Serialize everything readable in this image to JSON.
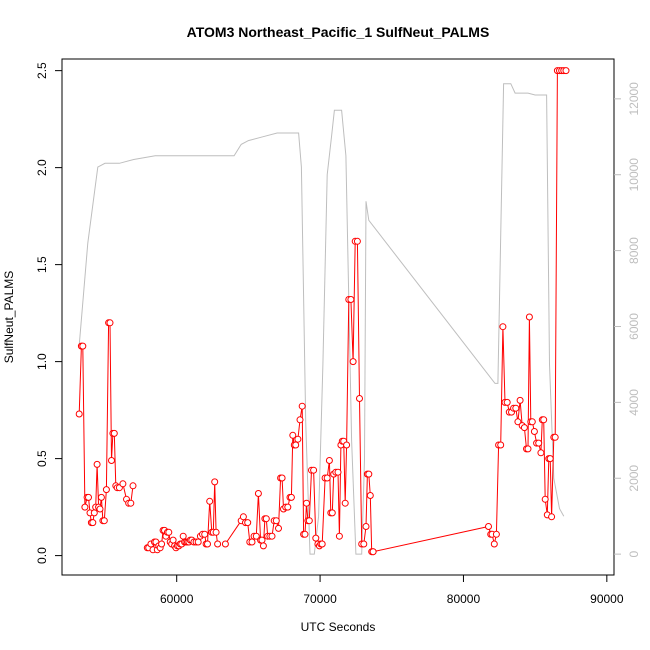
{
  "chart_data": {
    "type": "line",
    "title": "ATOM3 Northeast_Pacific_1 SulfNeut_PALMS",
    "xlabel": "UTC Seconds",
    "ylabel": "SulfNeut_PALMS",
    "xlim": [
      52000,
      90500
    ],
    "ylim": [
      -0.1,
      2.56
    ],
    "y2lim": [
      -550,
      13050
    ],
    "xticks": [
      60000,
      70000,
      80000,
      90000
    ],
    "xtick_labels": [
      "60000",
      "70000",
      "80000",
      "90000"
    ],
    "yticks": [
      0.0,
      0.5,
      1.0,
      1.5,
      2.0,
      2.5
    ],
    "ytick_labels": [
      "0.0",
      "0.5",
      "1.0",
      "1.5",
      "2.0",
      "2.5"
    ],
    "y2ticks": [
      0,
      2000,
      4000,
      6000,
      8000,
      10000,
      12000
    ],
    "y2tick_labels": [
      "0",
      "2000",
      "4000",
      "6000",
      "8000",
      "10000",
      "12000"
    ],
    "colors": {
      "sulfneut": "#ff0000",
      "altitude": "#bebebe",
      "frame": "#000000"
    },
    "grid": false,
    "legend": "none",
    "series": [
      {
        "axis": "left",
        "style": "line+circles",
        "color": "#ff0000",
        "segments": [
          [
            [
              53200,
              0.73
            ],
            [
              53350,
              1.08
            ],
            [
              53450,
              1.08
            ],
            [
              53600,
              0.25
            ],
            [
              53750,
              0.3
            ],
            [
              53850,
              0.3
            ],
            [
              53950,
              0.22
            ],
            [
              54050,
              0.17
            ],
            [
              54150,
              0.17
            ],
            [
              54250,
              0.22
            ],
            [
              54350,
              0.25
            ],
            [
              54450,
              0.47
            ],
            [
              54550,
              0.25
            ],
            [
              54650,
              0.24
            ],
            [
              54750,
              0.3
            ],
            [
              54850,
              0.18
            ],
            [
              54950,
              0.18
            ],
            [
              55100,
              0.34
            ],
            [
              55250,
              1.2
            ],
            [
              55350,
              1.2
            ],
            [
              55450,
              0.49
            ],
            [
              55550,
              0.63
            ],
            [
              55650,
              0.63
            ],
            [
              55750,
              0.36
            ],
            [
              55850,
              0.35
            ],
            [
              56000,
              0.35
            ],
            [
              56250,
              0.37
            ],
            [
              56500,
              0.29
            ],
            [
              56650,
              0.27
            ],
            [
              56800,
              0.27
            ],
            [
              56950,
              0.36
            ]
          ],
          [
            [
              57950,
              0.04
            ],
            [
              58050,
              0.04
            ],
            [
              58200,
              0.06
            ],
            [
              58350,
              0.03
            ],
            [
              58450,
              0.07
            ],
            [
              58550,
              0.07
            ],
            [
              58650,
              0.03
            ],
            [
              58750,
              0.05
            ],
            [
              58850,
              0.04
            ],
            [
              58950,
              0.06
            ],
            [
              59050,
              0.13
            ],
            [
              59150,
              0.13
            ],
            [
              59250,
              0.1
            ],
            [
              59350,
              0.12
            ],
            [
              59450,
              0.12
            ],
            [
              59550,
              0.07
            ],
            [
              59650,
              0.06
            ],
            [
              59750,
              0.08
            ],
            [
              59850,
              0.05
            ],
            [
              59950,
              0.04
            ],
            [
              60050,
              0.05
            ],
            [
              60150,
              0.05
            ],
            [
              60250,
              0.06
            ],
            [
              60350,
              0.06
            ],
            [
              60450,
              0.1
            ],
            [
              60550,
              0.07
            ],
            [
              60650,
              0.07
            ],
            [
              60750,
              0.07
            ],
            [
              60850,
              0.07
            ],
            [
              60950,
              0.08
            ],
            [
              61050,
              0.08
            ],
            [
              61200,
              0.07
            ],
            [
              61350,
              0.07
            ],
            [
              61500,
              0.07
            ],
            [
              61650,
              0.1
            ],
            [
              61800,
              0.11
            ],
            [
              61950,
              0.11
            ],
            [
              62050,
              0.06
            ],
            [
              62150,
              0.06
            ],
            [
              62300,
              0.28
            ],
            [
              62450,
              0.12
            ],
            [
              62550,
              0.12
            ],
            [
              62650,
              0.38
            ],
            [
              62750,
              0.12
            ],
            [
              62850,
              0.06
            ]
          ],
          [
            [
              63400,
              0.06
            ],
            [
              64500,
              0.18
            ],
            [
              64650,
              0.2
            ],
            [
              64800,
              0.17
            ],
            [
              64950,
              0.17
            ],
            [
              65100,
              0.07
            ],
            [
              65250,
              0.07
            ],
            [
              65400,
              0.1
            ],
            [
              65550,
              0.1
            ],
            [
              65700,
              0.32
            ],
            [
              65850,
              0.08
            ],
            [
              65950,
              0.08
            ],
            [
              66050,
              0.05
            ],
            [
              66150,
              0.19
            ],
            [
              66250,
              0.19
            ],
            [
              66350,
              0.1
            ],
            [
              66500,
              0.1
            ],
            [
              66650,
              0.1
            ],
            [
              66800,
              0.18
            ],
            [
              66950,
              0.18
            ],
            [
              67100,
              0.14
            ],
            [
              67250,
              0.4
            ],
            [
              67350,
              0.4
            ],
            [
              67450,
              0.24
            ],
            [
              67600,
              0.25
            ],
            [
              67750,
              0.25
            ],
            [
              67900,
              0.3
            ],
            [
              68000,
              0.3
            ],
            [
              68100,
              0.62
            ],
            [
              68200,
              0.57
            ],
            [
              68300,
              0.57
            ],
            [
              68450,
              0.6
            ],
            [
              68600,
              0.7
            ],
            [
              68750,
              0.77
            ],
            [
              68850,
              0.11
            ],
            [
              68950,
              0.11
            ],
            [
              69050,
              0.27
            ],
            [
              69150,
              0.18
            ],
            [
              69250,
              0.18
            ],
            [
              69400,
              0.44
            ],
            [
              69550,
              0.44
            ],
            [
              69700,
              0.09
            ],
            [
              69850,
              0.06
            ],
            [
              69950,
              0.05
            ],
            [
              70050,
              0.06
            ],
            [
              70150,
              0.06
            ],
            [
              70350,
              0.4
            ],
            [
              70500,
              0.4
            ],
            [
              70650,
              0.49
            ],
            [
              70750,
              0.22
            ],
            [
              70850,
              0.22
            ],
            [
              70950,
              0.42
            ],
            [
              71100,
              0.43
            ],
            [
              71250,
              0.43
            ],
            [
              71350,
              0.1
            ],
            [
              71450,
              0.57
            ],
            [
              71550,
              0.59
            ],
            [
              71650,
              0.59
            ],
            [
              71750,
              0.27
            ],
            [
              71850,
              0.57
            ],
            [
              72000,
              1.32
            ],
            [
              72150,
              1.32
            ],
            [
              72300,
              1.0
            ],
            [
              72450,
              1.62
            ],
            [
              72600,
              1.62
            ],
            [
              72750,
              0.81
            ],
            [
              72900,
              0.06
            ],
            [
              73050,
              0.06
            ],
            [
              73200,
              0.15
            ],
            [
              73300,
              0.42
            ],
            [
              73400,
              0.42
            ],
            [
              73500,
              0.31
            ],
            [
              73600,
              0.02
            ],
            [
              73700,
              0.02
            ]
          ]
        ]
      },
      {
        "axis": "left",
        "style": "line+circles",
        "color": "#ff0000",
        "segments": [
          [
            [
              73700,
              0.02
            ],
            [
              81750,
              0.15
            ],
            [
              81900,
              0.11
            ],
            [
              82000,
              0.11
            ],
            [
              82150,
              0.06
            ],
            [
              82300,
              0.11
            ],
            [
              82450,
              0.57
            ],
            [
              82600,
              0.57
            ],
            [
              82750,
              1.18
            ],
            [
              82900,
              0.79
            ],
            [
              83050,
              0.79
            ],
            [
              83200,
              0.74
            ],
            [
              83350,
              0.74
            ],
            [
              83500,
              0.76
            ],
            [
              83650,
              0.76
            ],
            [
              83800,
              0.69
            ],
            [
              83950,
              0.8
            ],
            [
              84100,
              0.67
            ],
            [
              84250,
              0.66
            ],
            [
              84400,
              0.55
            ],
            [
              84500,
              0.55
            ],
            [
              84600,
              1.23
            ],
            [
              84700,
              0.69
            ],
            [
              84800,
              0.69
            ],
            [
              84950,
              0.64
            ],
            [
              85100,
              0.58
            ],
            [
              85250,
              0.58
            ],
            [
              85400,
              0.53
            ],
            [
              85500,
              0.7
            ],
            [
              85600,
              0.7
            ],
            [
              85700,
              0.29
            ],
            [
              85850,
              0.21
            ],
            [
              85950,
              0.5
            ],
            [
              86050,
              0.5
            ],
            [
              86150,
              0.2
            ],
            [
              86300,
              0.61
            ],
            [
              86400,
              0.61
            ],
            [
              86550,
              2.5
            ],
            [
              86700,
              2.5
            ],
            [
              86850,
              2.5
            ],
            [
              87000,
              2.5
            ],
            [
              87150,
              2.5
            ]
          ]
        ]
      },
      {
        "axis": "right",
        "style": "line",
        "color": "#bebebe",
        "points": [
          [
            53200,
            5500
          ],
          [
            53800,
            8200
          ],
          [
            54500,
            10200
          ],
          [
            55000,
            10300
          ],
          [
            56000,
            10300
          ],
          [
            57000,
            10400
          ],
          [
            58500,
            10500
          ],
          [
            60000,
            10500
          ],
          [
            61000,
            10500
          ],
          [
            62000,
            10500
          ],
          [
            63000,
            10500
          ],
          [
            64000,
            10500
          ],
          [
            64500,
            10800
          ],
          [
            65000,
            10900
          ],
          [
            66000,
            11000
          ],
          [
            67000,
            11100
          ],
          [
            68000,
            11100
          ],
          [
            68500,
            11100
          ],
          [
            68700,
            10200
          ],
          [
            69000,
            3500
          ],
          [
            69300,
            0
          ],
          [
            69600,
            0
          ],
          [
            69900,
            1000
          ],
          [
            70200,
            5000
          ],
          [
            70500,
            10000
          ],
          [
            70800,
            11000
          ],
          [
            71000,
            11700
          ],
          [
            71500,
            11700
          ],
          [
            71800,
            10500
          ],
          [
            72200,
            3000
          ],
          [
            72500,
            0
          ],
          [
            72900,
            0
          ],
          [
            73100,
            2500
          ],
          [
            73200,
            9300
          ],
          [
            73400,
            8800
          ],
          [
            82200,
            4500
          ],
          [
            82400,
            4500
          ],
          [
            82800,
            12400
          ],
          [
            83300,
            12400
          ],
          [
            83600,
            12150
          ],
          [
            84500,
            12150
          ],
          [
            85000,
            12100
          ],
          [
            85500,
            12100
          ],
          [
            85800,
            12100
          ],
          [
            86000,
            5000
          ],
          [
            86300,
            2000
          ],
          [
            86700,
            1200
          ],
          [
            87000,
            1000
          ]
        ]
      }
    ]
  }
}
